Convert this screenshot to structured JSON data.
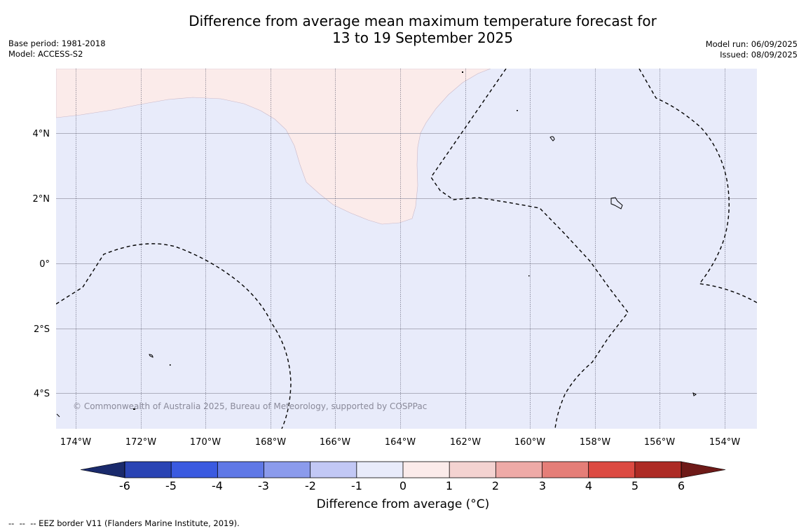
{
  "title": {
    "line1": "Difference from average mean maximum temperature forecast for",
    "line2": "13 to 19 September 2025"
  },
  "meta": {
    "base_period": "Base period: 1981-2018",
    "model": "Model: ACCESS-S2",
    "model_run": "Model run: 06/09/2025",
    "issued": "Issued: 08/09/2025"
  },
  "map": {
    "lat_labels": [
      "4°N",
      "2°N",
      "0°",
      "2°S",
      "4°S"
    ],
    "lon_labels": [
      "174°W",
      "172°W",
      "170°W",
      "168°W",
      "166°W",
      "164°W",
      "162°W",
      "160°W",
      "158°W",
      "156°W",
      "154°W"
    ],
    "copyright": "© Commonwealth of Australia 2025, Bureau of Meteorology, supported by COSPPac",
    "colors": {
      "background_anomaly": "#e8ebfa",
      "warm_anomaly": "#fbebea",
      "grid": "#9a9aa8"
    }
  },
  "colorbar": {
    "ticks": [
      "-6",
      "-5",
      "-4",
      "-3",
      "-2",
      "-1",
      "0",
      "1",
      "2",
      "3",
      "4",
      "5",
      "6"
    ],
    "label": "Difference from average (°C)",
    "colors": {
      "under": "#1a2a6c",
      "bins": [
        "#2a44b4",
        "#3a5ae0",
        "#5f78e6",
        "#8b9bec",
        "#c2c8f5",
        "#e8ebfa",
        "#fbebea",
        "#f4d3d1",
        "#eeaaa7",
        "#e57e78",
        "#dc4a42",
        "#ad2b25"
      ],
      "over": "#6e1a18"
    }
  },
  "footnote": "--  --  -- EEZ border V11 (Flanders Marine Institute, 2019)."
}
